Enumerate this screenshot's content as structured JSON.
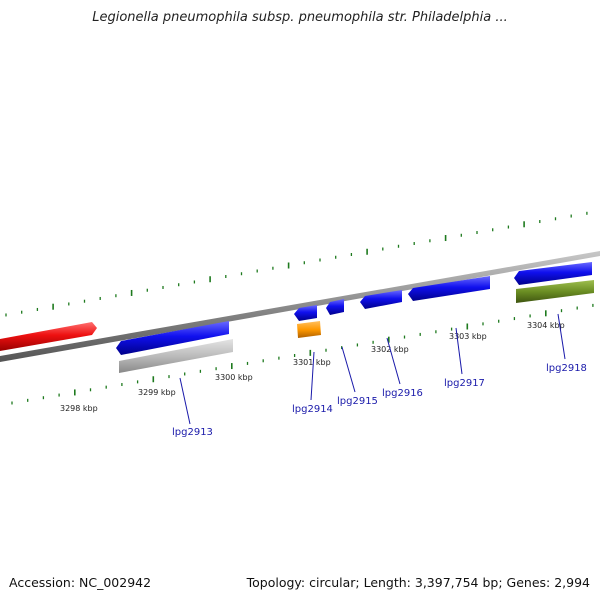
{
  "title": "Legionella pneumophila subsp. pneumophila str. Philadelphia ...",
  "footer": {
    "accession": "Accession: NC_002942",
    "summary": "Topology: circular; Length: 3,397,754 bp; Genes: 2,994"
  },
  "colors": {
    "backbone": "#8a8a8a",
    "tick": "#1e7a1e",
    "cds": "#1010ee",
    "red_feature": "#ee1111",
    "gray_feature": "#bbbbbb",
    "orange_feature": "#ff9900",
    "olive_feature": "#6b8e23",
    "label": "#1a1aaa"
  },
  "scale": {
    "unit": "kbp",
    "major_ticks": [
      {
        "kbp": 3298,
        "label": "3298 kbp"
      },
      {
        "kbp": 3299,
        "label": "3299 kbp"
      },
      {
        "kbp": 3300,
        "label": "3300 kbp"
      },
      {
        "kbp": 3301,
        "label": "3301 kbp"
      },
      {
        "kbp": 3302,
        "label": "3302 kbp"
      },
      {
        "kbp": 3303,
        "label": "3303 kbp"
      },
      {
        "kbp": 3304,
        "label": "3304 kbp"
      }
    ]
  },
  "genes": [
    {
      "label": "lpg2913"
    },
    {
      "label": "lpg2914"
    },
    {
      "label": "lpg2915"
    },
    {
      "label": "lpg2916"
    },
    {
      "label": "lpg2917"
    },
    {
      "label": "lpg2918"
    }
  ]
}
